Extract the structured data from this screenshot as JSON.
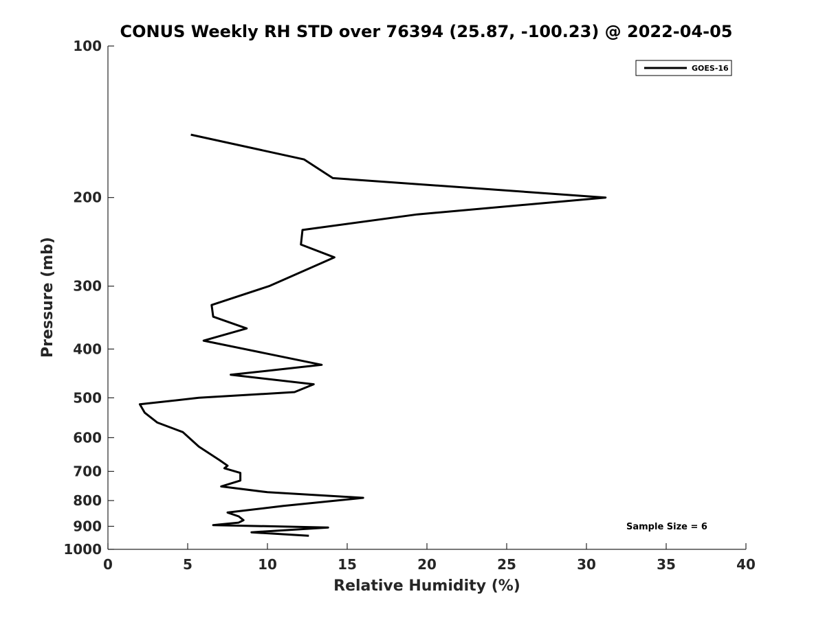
{
  "chart_data": {
    "type": "line",
    "title": "CONUS Weekly RH STD over 76394 (25.87, -100.23) @ 2022-04-05",
    "xlabel": "Relative Humidity (%)",
    "ylabel": "Pressure (mb)",
    "xlim": [
      0,
      40
    ],
    "ylim": [
      100,
      1000
    ],
    "y_scale": "log",
    "y_reversed": true,
    "x_ticks": [
      0,
      5,
      10,
      15,
      20,
      25,
      30,
      35,
      40
    ],
    "y_ticks": [
      100,
      200,
      300,
      400,
      500,
      600,
      700,
      800,
      900,
      1000
    ],
    "grid": false,
    "legend_position": "top-right",
    "series": [
      {
        "name": "GOES-16",
        "color": "#000000",
        "points": [
          {
            "x": 5.2,
            "y": 150
          },
          {
            "x": 12.3,
            "y": 168
          },
          {
            "x": 14.1,
            "y": 183
          },
          {
            "x": 31.2,
            "y": 200
          },
          {
            "x": 19.4,
            "y": 216
          },
          {
            "x": 12.2,
            "y": 232
          },
          {
            "x": 12.1,
            "y": 248
          },
          {
            "x": 14.2,
            "y": 263
          },
          {
            "x": 10.1,
            "y": 300
          },
          {
            "x": 6.5,
            "y": 327
          },
          {
            "x": 6.6,
            "y": 345
          },
          {
            "x": 8.7,
            "y": 364
          },
          {
            "x": 6.0,
            "y": 385
          },
          {
            "x": 13.4,
            "y": 430
          },
          {
            "x": 7.7,
            "y": 450
          },
          {
            "x": 12.9,
            "y": 470
          },
          {
            "x": 11.7,
            "y": 487
          },
          {
            "x": 5.7,
            "y": 500
          },
          {
            "x": 2.0,
            "y": 515
          },
          {
            "x": 2.3,
            "y": 535
          },
          {
            "x": 3.1,
            "y": 560
          },
          {
            "x": 4.7,
            "y": 585
          },
          {
            "x": 5.7,
            "y": 625
          },
          {
            "x": 7.0,
            "y": 665
          },
          {
            "x": 7.5,
            "y": 682
          },
          {
            "x": 7.3,
            "y": 690
          },
          {
            "x": 8.3,
            "y": 705
          },
          {
            "x": 8.3,
            "y": 730
          },
          {
            "x": 7.1,
            "y": 750
          },
          {
            "x": 10.0,
            "y": 770
          },
          {
            "x": 16.0,
            "y": 790
          },
          {
            "x": 11.0,
            "y": 820
          },
          {
            "x": 7.5,
            "y": 845
          },
          {
            "x": 8.2,
            "y": 860
          },
          {
            "x": 8.5,
            "y": 875
          },
          {
            "x": 8.2,
            "y": 885
          },
          {
            "x": 6.6,
            "y": 895
          },
          {
            "x": 13.8,
            "y": 905
          },
          {
            "x": 9.0,
            "y": 925
          },
          {
            "x": 12.6,
            "y": 940
          }
        ]
      }
    ],
    "annotations": [
      "Sample Size = 6"
    ]
  }
}
